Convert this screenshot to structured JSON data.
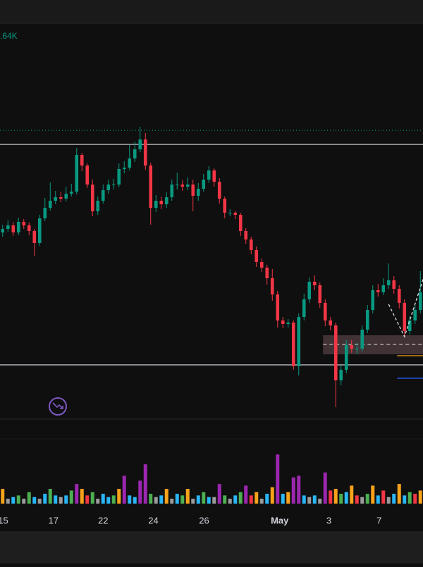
{
  "chart_data": {
    "type": "candlestick",
    "legend_text": ".64K",
    "xlim": [
      -0.5,
      79.5
    ],
    "ylim": [
      0,
      56.2
    ],
    "xticks": [
      {
        "value": 0.1,
        "label": "15"
      },
      {
        "value": 9.6,
        "label": "17"
      },
      {
        "value": 19,
        "label": "22"
      },
      {
        "value": 28.5,
        "label": "24"
      },
      {
        "value": 38.1,
        "label": "26"
      },
      {
        "value": 52.4,
        "label": "May"
      },
      {
        "value": 61.7,
        "label": "3"
      },
      {
        "value": 71.2,
        "label": "7"
      }
    ],
    "up_color": "#089981",
    "down_color": "#f23645",
    "open": [
      26.5,
      27.0,
      27.5,
      26.5,
      28.0,
      27.5,
      26.7,
      25.0,
      28.5,
      30.0,
      31.0,
      31.5,
      31.3,
      32.0,
      32.3,
      37.5,
      36.0,
      33.3,
      29.5,
      31.0,
      32.5,
      33.3,
      33.3,
      35.5,
      35.7,
      37.0,
      38.3,
      39.7,
      36.0,
      30.0,
      31.0,
      30.5,
      31.5,
      33.3,
      33.3,
      33.0,
      33.3,
      31.7,
      32.7,
      34.0,
      35.3,
      33.7,
      31.3,
      29.3,
      29.3,
      29.0,
      26.7,
      25.5,
      24.0,
      22.3,
      21.5,
      20.0,
      17.7,
      14.0,
      13.5,
      13.7,
      7.5,
      14.5,
      17.0,
      19.5,
      19.0,
      16.5,
      14.0,
      13.3,
      5.5,
      7.0,
      10.5,
      10.0,
      10.0,
      12.7,
      15.5,
      18.3,
      18.0,
      19.0,
      19.7,
      18.5,
      16.5,
      12.5,
      14.0,
      15.5
    ],
    "high": [
      27.6,
      28.2,
      28.0,
      28.6,
      28.4,
      27.9,
      27.0,
      29.0,
      31.4,
      33.6,
      32.4,
      32.3,
      33.0,
      33.4,
      38.5,
      37.8,
      36.3,
      34.0,
      31.6,
      33.3,
      34.0,
      34.1,
      36.3,
      36.6,
      38.9,
      39.4,
      41.5,
      40.6,
      36.4,
      31.8,
      31.6,
      32.2,
      34.0,
      35.0,
      33.9,
      34.3,
      34.0,
      33.5,
      34.8,
      35.9,
      35.6,
      34.2,
      31.6,
      29.8,
      29.6,
      29.3,
      27.1,
      25.9,
      24.5,
      22.8,
      21.9,
      21.3,
      18.2,
      14.5,
      14.2,
      14.0,
      15.0,
      17.8,
      20.1,
      20.4,
      19.4,
      17.0,
      14.5,
      13.7,
      7.6,
      11.2,
      11.2,
      10.8,
      13.3,
      16.2,
      19.0,
      19.2,
      20.0,
      22.1,
      20.3,
      19.0,
      17.0,
      14.6,
      16.2,
      21.0
    ],
    "low": [
      25.9,
      26.6,
      26.0,
      26.1,
      27.0,
      26.1,
      23.2,
      24.6,
      28.1,
      29.6,
      30.5,
      30.8,
      30.9,
      31.6,
      31.9,
      35.2,
      32.8,
      28.8,
      29.0,
      30.6,
      32.0,
      32.6,
      32.9,
      34.9,
      35.3,
      36.5,
      37.9,
      35.4,
      27.6,
      29.4,
      29.8,
      30.0,
      31.0,
      32.6,
      32.4,
      32.5,
      29.5,
      31.0,
      32.3,
      33.5,
      33.0,
      30.6,
      28.5,
      28.8,
      28.4,
      26.0,
      24.9,
      23.4,
      21.6,
      20.9,
      19.1,
      16.8,
      13.0,
      12.9,
      13.0,
      7.0,
      6.2,
      14.0,
      16.5,
      18.3,
      15.8,
      13.2,
      12.6,
      1.7,
      4.8,
      6.5,
      9.4,
      9.2,
      9.6,
      12.2,
      15.0,
      17.4,
      17.6,
      18.5,
      17.8,
      15.7,
      11.8,
      12.0,
      13.5,
      15.0
    ],
    "close": [
      27.0,
      27.5,
      26.5,
      28.0,
      27.5,
      26.7,
      25.0,
      28.5,
      30.0,
      31.0,
      31.5,
      31.3,
      32.0,
      32.3,
      37.5,
      36.0,
      33.3,
      29.5,
      31.0,
      32.5,
      33.3,
      33.3,
      35.5,
      35.7,
      37.0,
      38.3,
      39.7,
      36.0,
      30.0,
      31.0,
      30.5,
      31.5,
      33.3,
      33.3,
      33.0,
      33.3,
      31.7,
      32.7,
      34.0,
      35.3,
      33.7,
      31.3,
      29.3,
      29.3,
      29.0,
      26.7,
      25.5,
      24.0,
      22.3,
      21.5,
      20.0,
      17.7,
      14.0,
      13.5,
      13.7,
      7.5,
      14.5,
      17.0,
      19.5,
      19.0,
      16.5,
      14.0,
      13.3,
      5.5,
      7.0,
      10.5,
      10.0,
      10.0,
      12.7,
      15.5,
      18.3,
      18.0,
      19.0,
      19.7,
      18.5,
      16.5,
      12.5,
      14.0,
      15.5,
      18.0
    ],
    "volume": {
      "ylim": [
        0,
        4
      ],
      "values": [
        0.9,
        0.3,
        0.4,
        0.5,
        0.3,
        0.7,
        0.4,
        0.3,
        0.6,
        0.9,
        0.5,
        0.4,
        0.5,
        0.8,
        1.2,
        0.9,
        0.5,
        0.7,
        0.3,
        0.6,
        0.4,
        0.5,
        0.9,
        1.7,
        0.5,
        0.4,
        1.4,
        2.4,
        0.6,
        0.4,
        0.5,
        0.9,
        0.3,
        0.6,
        0.5,
        0.9,
        0.3,
        0.5,
        0.7,
        0.4,
        0.4,
        1.2,
        0.5,
        0.3,
        0.5,
        0.7,
        1.1,
        0.5,
        0.7,
        0.3,
        0.6,
        1.0,
        3.0,
        0.6,
        0.7,
        1.6,
        1.7,
        0.5,
        0.4,
        0.5,
        0.3,
        1.9,
        0.8,
        0.9,
        0.6,
        0.7,
        1.1,
        0.5,
        0.4,
        0.6,
        1.1,
        0.5,
        0.8,
        0.4,
        0.6,
        1.2,
        0.5,
        0.7,
        0.6,
        0.8
      ],
      "colors": [
        "#f7a21b",
        "#9b9b9b",
        "#29b6f6",
        "#4caf50",
        "#9b9b9b",
        "#4caf50",
        "#29b6f6",
        "#9b9b9b",
        "#29b6f6",
        "#4caf50",
        "#29b6f6",
        "#9b9b9b",
        "#29b6f6",
        "#4caf50",
        "#9c27b0",
        "#f7a21b",
        "#f23645",
        "#4caf50",
        "#9b9b9b",
        "#29b6f6",
        "#29b6f6",
        "#4caf50",
        "#f7a21b",
        "#9c27b0",
        "#29b6f6",
        "#29b6f6",
        "#9c27b0",
        "#9c27b0",
        "#4caf50",
        "#9b9b9b",
        "#29b6f6",
        "#f7a21b",
        "#9b9b9b",
        "#29b6f6",
        "#4caf50",
        "#f7a21b",
        "#9b9b9b",
        "#29b6f6",
        "#4caf50",
        "#29b6f6",
        "#9b9b9b",
        "#9c27b0",
        "#4caf50",
        "#9b9b9b",
        "#29b6f6",
        "#4caf50",
        "#9c27b0",
        "#f23645",
        "#f7a21b",
        "#9b9b9b",
        "#29b6f6",
        "#f7a21b",
        "#9c27b0",
        "#29b6f6",
        "#f7a21b",
        "#9c27b0",
        "#9c27b0",
        "#29b6f6",
        "#9b9b9b",
        "#29b6f6",
        "#9b9b9b",
        "#9c27b0",
        "#f23645",
        "#f7a21b",
        "#4caf50",
        "#29b6f6",
        "#f7a21b",
        "#f23645",
        "#9b9b9b",
        "#4caf50",
        "#f7a21b",
        "#29b6f6",
        "#f23645",
        "#9b9b9b",
        "#29b6f6",
        "#f7a21b",
        "#29b6f6",
        "#4caf50",
        "#f23645",
        "#f7a21b"
      ]
    },
    "levels": [
      {
        "value": 41.0,
        "color": "#089981",
        "style": "dotted",
        "from": -0.5
      },
      {
        "value": 39.0,
        "color": "#d1d4dc",
        "style": "solid",
        "from": -0.5
      },
      {
        "value": 7.7,
        "color": "#d1d4dc",
        "style": "solid",
        "from": -0.5
      },
      {
        "value": 9.0,
        "color": "#f7a21b",
        "style": "solid",
        "from": 75
      },
      {
        "value": 5.8,
        "color": "#2962ff",
        "style": "solid",
        "from": 75
      }
    ],
    "zone": {
      "from": 61,
      "range": [
        9.2,
        11.9
      ],
      "mid": 10.6,
      "color": "#4a3a3c"
    },
    "zigzag": {
      "x": [
        73,
        76,
        80
      ],
      "values": [
        16.3,
        11.7,
        21.0
      ],
      "color": "#e0e0e0"
    }
  }
}
